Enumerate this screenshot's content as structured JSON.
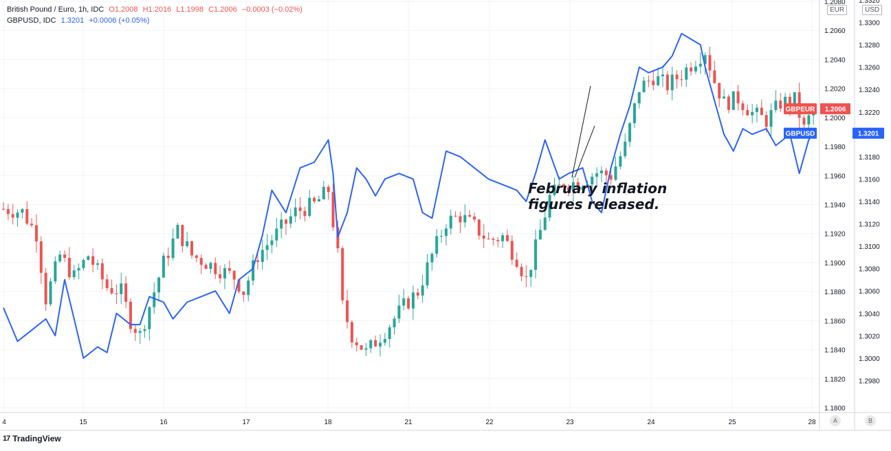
{
  "header": {
    "symbol_line": "British Pound / Euro, 1h, IDC",
    "o_label": "O",
    "o_value": "1.2008",
    "h_label": "H",
    "h_value": "1.2016",
    "l_label": "L",
    "l_value": "1.1998",
    "c_label": "C",
    "c_value": "1.2006",
    "change": "−0.0003 (−0.02%)",
    "compare_line": "GBPUSD, IDC",
    "compare_value": "1.3201",
    "compare_change": "+0.0006 (+0.05%)"
  },
  "axis_units": {
    "left": "EUR",
    "right": "USD"
  },
  "scale_buttons": {
    "a": "A",
    "b": "B"
  },
  "branding": {
    "logo": "17",
    "name": "TradingView"
  },
  "annotation": {
    "line1": "February inflation",
    "line2": "figures released."
  },
  "colors": {
    "up": "#26a69a",
    "down": "#ef5350",
    "compare": "#2962ff",
    "grid": "#f0f3fa",
    "text": "#131722"
  },
  "chart_data": {
    "type": "candlestick+line",
    "x_ticks": [
      "4",
      "15",
      "16",
      "17",
      "18",
      "21",
      "22",
      "23",
      "24",
      "25",
      "28"
    ],
    "eur_axis": {
      "min": 1.18,
      "max": 1.208,
      "ticks": [
        "1.1800",
        "1.1820",
        "1.1840",
        "1.1860",
        "1.1880",
        "1.1900",
        "1.1920",
        "1.1940",
        "1.1960",
        "1.1980",
        "1.2000",
        "1.2020",
        "1.2040",
        "1.2060",
        "1.2080"
      ]
    },
    "usd_axis": {
      "min": 1.296,
      "max": 1.332,
      "ticks": [
        "1.2980",
        "1.3000",
        "1.3020",
        "1.3040",
        "1.3060",
        "1.3080",
        "1.3100",
        "1.3120",
        "1.3140",
        "1.3160",
        "1.3180",
        "1.3200",
        "1.3220",
        "1.3240",
        "1.3260",
        "1.3280",
        "1.3300",
        "1.3320"
      ]
    },
    "series": [
      {
        "name": "GBPEUR",
        "last_label": "1.2006",
        "type": "candlestick",
        "anchors": [
          [
            0,
            1.1937
          ],
          [
            4,
            1.1935
          ],
          [
            7,
            1.192
          ],
          [
            9,
            1.1875
          ],
          [
            12,
            1.1905
          ],
          [
            15,
            1.189
          ],
          [
            18,
            1.1905
          ],
          [
            22,
            1.1883
          ],
          [
            25,
            1.188
          ],
          [
            27,
            1.186
          ],
          [
            29,
            1.185
          ],
          [
            31,
            1.187
          ],
          [
            34,
            1.19
          ],
          [
            37,
            1.1922
          ],
          [
            40,
            1.1905
          ],
          [
            43,
            1.19
          ],
          [
            46,
            1.1895
          ],
          [
            49,
            1.189
          ],
          [
            51,
            1.188
          ],
          [
            54,
            1.1905
          ],
          [
            58,
            1.192
          ],
          [
            62,
            1.1935
          ],
          [
            66,
            1.194
          ],
          [
            69,
            1.195
          ],
          [
            71,
            1.1905
          ],
          [
            72,
            1.187
          ],
          [
            74,
            1.185
          ],
          [
            77,
            1.1838
          ],
          [
            81,
            1.1853
          ],
          [
            85,
            1.187
          ],
          [
            88,
            1.188
          ],
          [
            91,
            1.1905
          ],
          [
            94,
            1.1928
          ],
          [
            97,
            1.1932
          ],
          [
            100,
            1.1925
          ],
          [
            103,
            1.1915
          ],
          [
            106,
            1.1918
          ],
          [
            109,
            1.1903
          ],
          [
            111,
            1.1888
          ],
          [
            113,
            1.191
          ],
          [
            116,
            1.1945
          ],
          [
            119,
            1.1955
          ],
          [
            122,
            1.1955
          ],
          [
            126,
            1.1962
          ],
          [
            129,
            1.196
          ],
          [
            132,
            1.198
          ],
          [
            135,
            1.202
          ],
          [
            138,
            1.2028
          ],
          [
            141,
            1.2022
          ],
          [
            144,
            1.203
          ],
          [
            147,
            1.204
          ],
          [
            149,
            1.2046
          ],
          [
            151,
            1.2025
          ],
          [
            153,
            1.201
          ],
          [
            156,
            1.2013
          ],
          [
            159,
            1.2003
          ],
          [
            162,
            1.1998
          ],
          [
            165,
            1.201
          ],
          [
            168,
            1.2012
          ],
          [
            170,
            1.1992
          ],
          [
            172,
            1.2006
          ]
        ]
      },
      {
        "name": "GBPUSD",
        "last_label": "1.3201",
        "type": "line",
        "points": [
          [
            0,
            1.3045
          ],
          [
            3,
            1.3015
          ],
          [
            6,
            1.3025
          ],
          [
            9,
            1.3035
          ],
          [
            11,
            1.302
          ],
          [
            13,
            1.307
          ],
          [
            15,
            1.3035
          ],
          [
            17,
            1.3
          ],
          [
            20,
            1.301
          ],
          [
            22,
            1.3005
          ],
          [
            24,
            1.304
          ],
          [
            27,
            1.303
          ],
          [
            29,
            1.303
          ],
          [
            31,
            1.3055
          ],
          [
            34,
            1.305
          ],
          [
            36,
            1.3035
          ],
          [
            39,
            1.305
          ],
          [
            42,
            1.3055
          ],
          [
            45,
            1.306
          ],
          [
            48,
            1.304
          ],
          [
            50,
            1.307
          ],
          [
            53,
            1.308
          ],
          [
            55,
            1.311
          ],
          [
            57,
            1.315
          ],
          [
            60,
            1.313
          ],
          [
            63,
            1.317
          ],
          [
            66,
            1.3175
          ],
          [
            69,
            1.3195
          ],
          [
            70,
            1.3165
          ],
          [
            71,
            1.3108
          ],
          [
            73,
            1.313
          ],
          [
            75,
            1.317
          ],
          [
            77,
            1.316
          ],
          [
            79,
            1.3145
          ],
          [
            81,
            1.316
          ],
          [
            84,
            1.3165
          ],
          [
            87,
            1.316
          ],
          [
            89,
            1.313
          ],
          [
            91,
            1.3125
          ],
          [
            94,
            1.3185
          ],
          [
            97,
            1.318
          ],
          [
            100,
            1.317
          ],
          [
            103,
            1.316
          ],
          [
            106,
            1.3155
          ],
          [
            109,
            1.315
          ],
          [
            111,
            1.314
          ],
          [
            113,
            1.3165
          ],
          [
            115,
            1.3195
          ],
          [
            118,
            1.316
          ],
          [
            120,
            1.3165
          ],
          [
            123,
            1.317
          ],
          [
            125,
            1.314
          ],
          [
            127,
            1.313
          ],
          [
            129,
            1.317
          ],
          [
            131,
            1.32
          ],
          [
            133,
            1.3225
          ],
          [
            135,
            1.326
          ],
          [
            137,
            1.3255
          ],
          [
            140,
            1.326
          ],
          [
            142,
            1.327
          ],
          [
            144,
            1.329
          ],
          [
            146,
            1.3285
          ],
          [
            148,
            1.328
          ],
          [
            149,
            1.326
          ],
          [
            151,
            1.323
          ],
          [
            153,
            1.32
          ],
          [
            155,
            1.3185
          ],
          [
            157,
            1.3205
          ],
          [
            159,
            1.32
          ],
          [
            162,
            1.3205
          ],
          [
            164,
            1.319
          ],
          [
            167,
            1.32
          ],
          [
            169,
            1.3165
          ],
          [
            171,
            1.3195
          ],
          [
            172,
            1.32
          ]
        ]
      }
    ],
    "candle_count": 173,
    "x_axis_bars_per_day": 15.5
  }
}
